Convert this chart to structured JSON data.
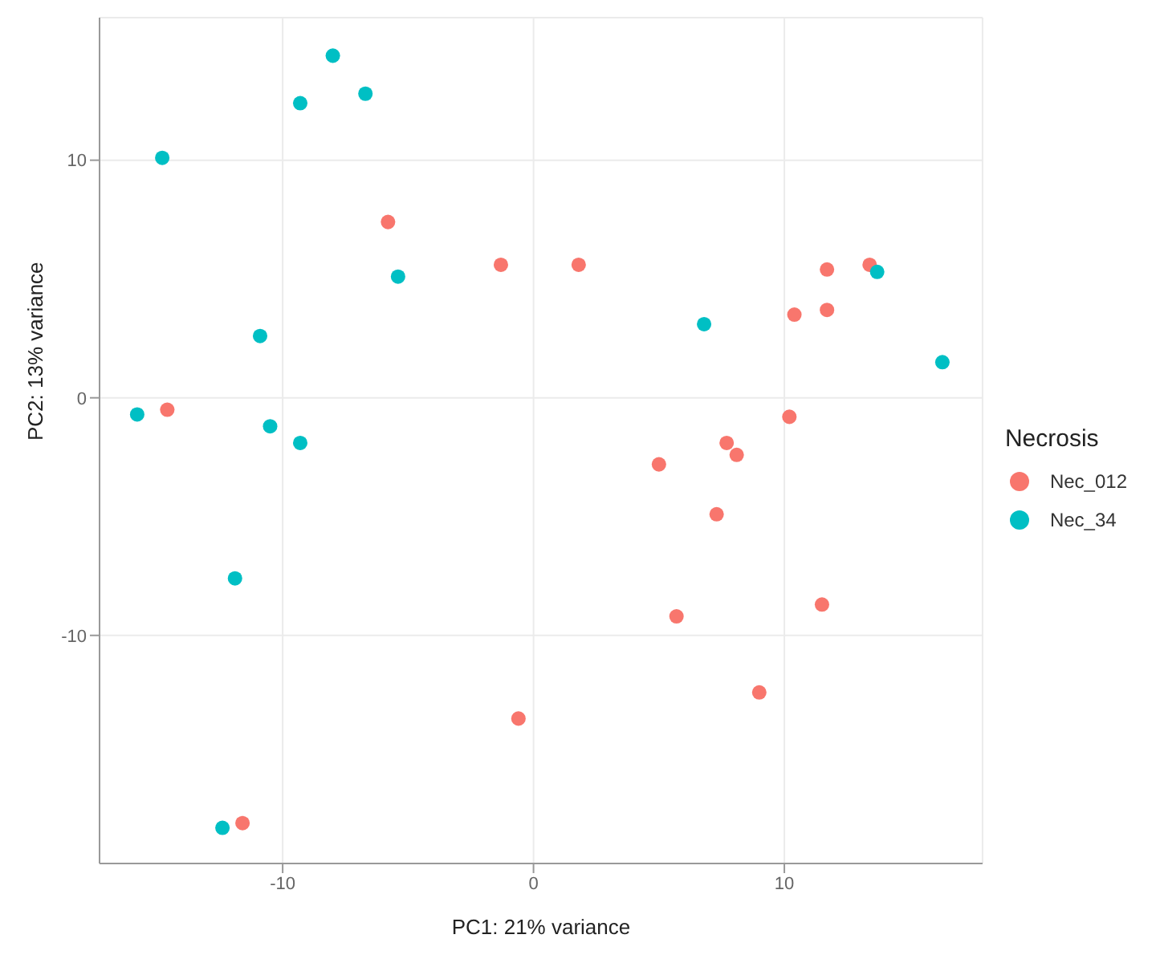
{
  "chart_data": {
    "type": "scatter",
    "xlabel": "PC1: 21% variance",
    "ylabel": "PC2: 13% variance",
    "legend_title": "Necrosis",
    "legend": "right",
    "grid": true,
    "marker": "circle",
    "xlim": [
      -17.3,
      17.9
    ],
    "ylim": [
      -19.6,
      16
    ],
    "xticks": [
      -10,
      0,
      10
    ],
    "yticks": [
      -10,
      0,
      10
    ],
    "series": [
      {
        "name": "Nec_012",
        "color": "#f8766d",
        "x": [
          -14.6,
          -5.8,
          -1.3,
          1.8,
          11.7,
          13.4,
          10.4,
          11.7,
          10.2,
          7.7,
          8.1,
          5.0,
          7.3,
          5.7,
          11.5,
          9.0,
          -0.6,
          -11.6
        ],
        "values": [
          -0.5,
          7.4,
          5.6,
          5.6,
          5.4,
          5.6,
          3.5,
          3.7,
          -0.8,
          -1.9,
          -2.4,
          -2.8,
          -4.9,
          -9.2,
          -8.7,
          -12.4,
          -13.5,
          -17.9
        ]
      },
      {
        "name": "Nec_34",
        "color": "#00bfc4",
        "x": [
          -14.8,
          -9.3,
          -8.0,
          -6.7,
          -5.4,
          -10.9,
          -15.8,
          -10.5,
          -9.3,
          -11.9,
          -12.4,
          6.8,
          13.7,
          16.3
        ],
        "values": [
          10.1,
          12.4,
          14.4,
          12.8,
          5.1,
          2.6,
          -0.7,
          -1.2,
          -1.9,
          -7.6,
          -18.1,
          3.1,
          5.3,
          1.5
        ]
      }
    ]
  }
}
